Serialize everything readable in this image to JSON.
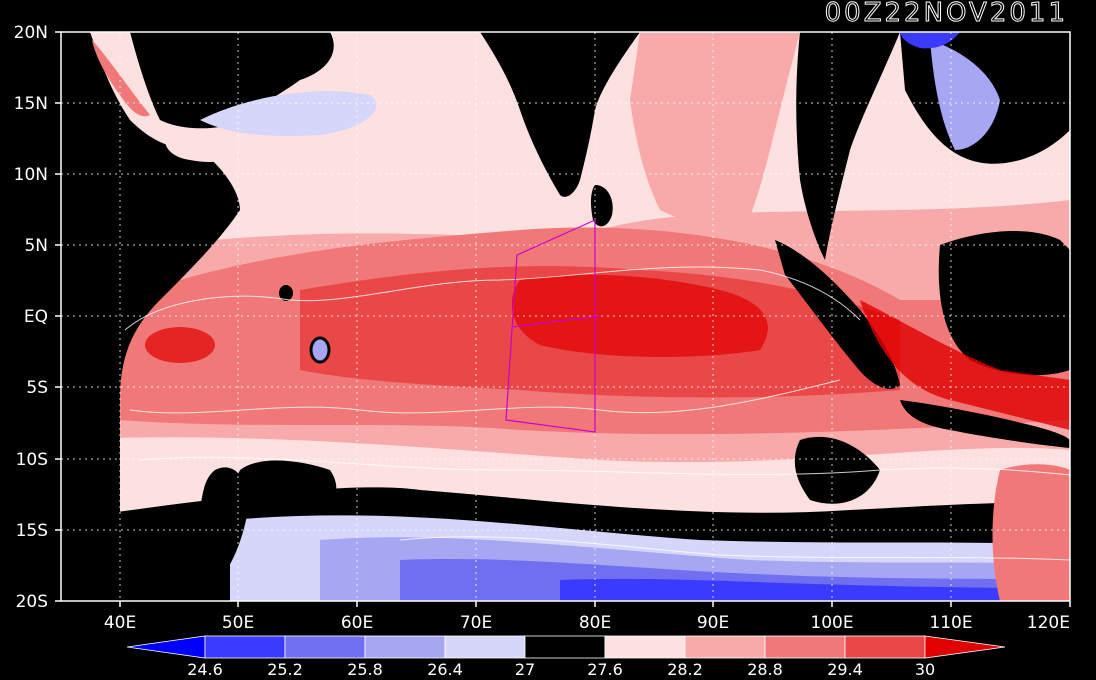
{
  "title": "00Z22NOV2011",
  "axes": {
    "lat_labels": [
      "20N",
      "15N",
      "10N",
      "5N",
      "EQ",
      "5S",
      "10S",
      "15S",
      "20S"
    ],
    "lon_labels": [
      "40E",
      "50E",
      "60E",
      "70E",
      "80E",
      "90E",
      "100E",
      "110E",
      "120E"
    ],
    "lon_range": [
      35,
      120
    ],
    "lat_range": [
      -20,
      20
    ]
  },
  "colorbar": {
    "labels": [
      "24.6",
      "25.2",
      "25.8",
      "26.4",
      "27",
      "27.6",
      "28.2",
      "28.8",
      "29.4",
      "30"
    ],
    "colors": [
      "#0000ff",
      "#3b3bff",
      "#6f6ff0",
      "#a6a6f2",
      "#d6d6fb",
      "#000000",
      "#fde0e0",
      "#f8aaaa",
      "#f07878",
      "#ea4848",
      "#e00000"
    ]
  },
  "box_region": {
    "lon": [
      72,
      80
    ],
    "lat": [
      -8,
      7
    ]
  }
}
